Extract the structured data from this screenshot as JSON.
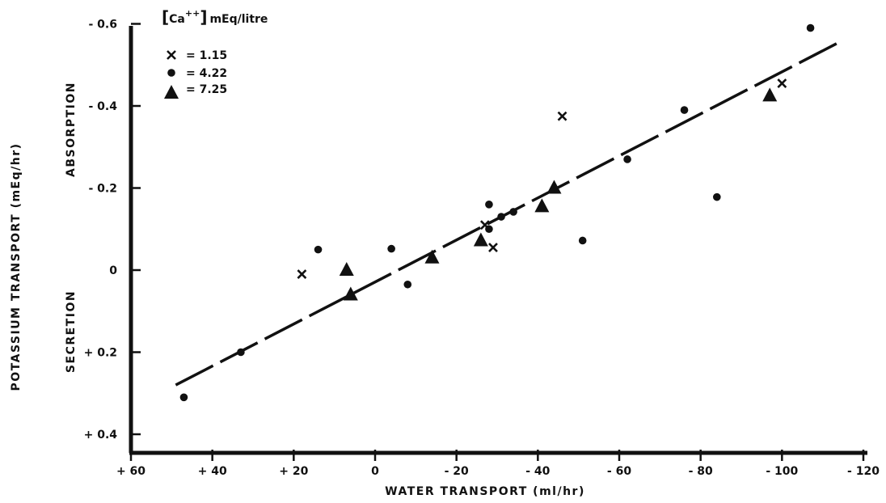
{
  "chart_data": {
    "type": "scatter",
    "xlabel": "WATER TRANSPORT (ml/hr)",
    "ylabel": "POTASSIUM TRANSPORT (mEq/hr)",
    "region_labels": {
      "top": "ABSORPTION",
      "bottom": "SECRETION"
    },
    "xlim": [
      60,
      -120
    ],
    "ylim": [
      0.4,
      -0.6
    ],
    "x_ticks": [
      60,
      40,
      20,
      0,
      -20,
      -40,
      -60,
      -80,
      -100,
      -120
    ],
    "x_tick_labels": [
      "+ 60",
      "+ 40",
      "+ 20",
      "0",
      "- 20",
      "- 40",
      "- 60",
      "- 80",
      "- 100",
      "- 120"
    ],
    "y_ticks": [
      -0.6,
      -0.4,
      -0.2,
      0,
      0.2,
      0.4
    ],
    "y_tick_labels": [
      "- 0.6",
      "- 0.4",
      "- 0.2",
      "0",
      "+ 0.2",
      "+ 0.4"
    ],
    "legend": {
      "title": "[Ca++] mEq/litre",
      "title_main": "Ca",
      "title_sup": "++",
      "title_unit": "mEq/litre",
      "placement": "top-left"
    },
    "series": [
      {
        "name": "= 1.15",
        "marker": "x",
        "points": [
          [
            18,
            0.01
          ],
          [
            -27,
            -0.11
          ],
          [
            -29,
            -0.055
          ],
          [
            -46,
            -0.375
          ],
          [
            -100,
            -0.455
          ]
        ]
      },
      {
        "name": "= 4.22",
        "marker": "circle",
        "points": [
          [
            47,
            0.31
          ],
          [
            33,
            0.2
          ],
          [
            14,
            -0.05
          ],
          [
            -4,
            -0.052
          ],
          [
            -8,
            0.035
          ],
          [
            -28,
            -0.16
          ],
          [
            -28,
            -0.1
          ],
          [
            -31,
            -0.13
          ],
          [
            -34,
            -0.142
          ],
          [
            -51,
            -0.072
          ],
          [
            -62,
            -0.27
          ],
          [
            -76,
            -0.39
          ],
          [
            -84,
            -0.178
          ],
          [
            -107,
            -0.59
          ]
        ]
      },
      {
        "name": "= 7.25",
        "marker": "triangle",
        "points": [
          [
            7,
            0.0
          ],
          [
            6,
            0.06
          ],
          [
            -14,
            -0.03
          ],
          [
            -26,
            -0.072
          ],
          [
            -41,
            -0.155
          ],
          [
            -44,
            -0.2
          ],
          [
            -97,
            -0.425
          ]
        ]
      }
    ],
    "regression_line": {
      "points": [
        [
          49,
          0.28
        ],
        [
          -115,
          -0.56
        ]
      ],
      "style": "dashed"
    }
  }
}
